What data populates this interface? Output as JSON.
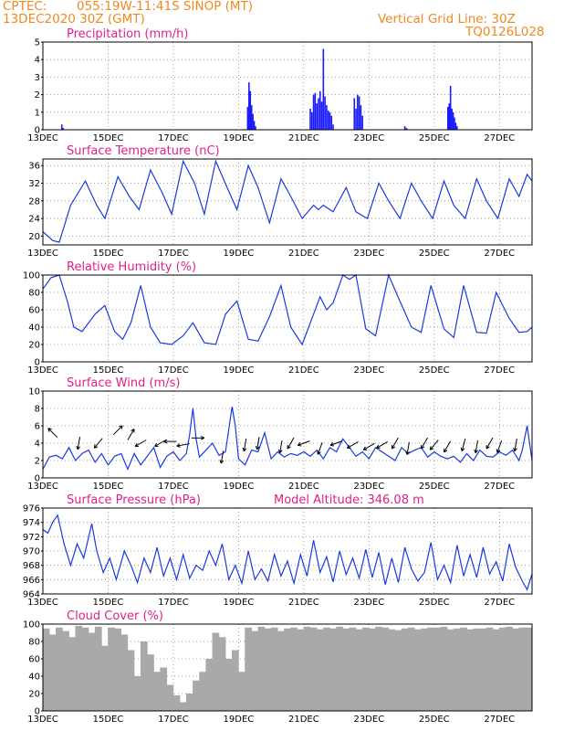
{
  "header": {
    "source": "CPTEC:",
    "location": "055:19W-11:41S  SINOP (MT)",
    "run": "13DEC2020 30Z (GMT)",
    "grid_note": "Vertical Grid Line: 30Z",
    "code": "TQ0126L028"
  },
  "colors": {
    "header_text": "#f08a20",
    "title_text": "#e0208c",
    "precip_bars": "#1a1aff",
    "line": "#1a3adf",
    "arrows": "#000000",
    "cloud": "#a9a9a9",
    "grid": "#888888"
  },
  "chart_data": [
    {
      "type": "bar",
      "title": "Precipitation (mm/h)",
      "x_range": [
        0,
        15
      ],
      "ylim": [
        0,
        5
      ],
      "yticks": [
        0,
        1,
        2,
        3,
        4,
        5
      ],
      "x_tick_labels": [
        "13DEC",
        "15DEC",
        "17DEC",
        "19DEC",
        "21DEC",
        "23DEC",
        "25DEC",
        "27DEC"
      ],
      "x_tick_days": [
        0,
        2,
        4,
        6,
        8,
        10,
        12,
        14
      ],
      "grid": "dotted",
      "x": [
        0.58,
        0.62,
        6.28,
        6.32,
        6.36,
        6.4,
        6.44,
        6.48,
        6.52,
        8.2,
        8.25,
        8.3,
        8.35,
        8.4,
        8.45,
        8.5,
        8.55,
        8.6,
        8.65,
        8.7,
        8.75,
        8.8,
        8.85,
        8.9,
        9.55,
        9.6,
        9.65,
        9.7,
        9.75,
        9.8,
        11.1,
        11.15,
        12.42,
        12.46,
        12.5,
        12.54,
        12.58,
        12.62,
        12.66,
        12.7
      ],
      "values": [
        0.3,
        0.1,
        1.3,
        2.7,
        2.2,
        1.4,
        0.9,
        0.5,
        0.2,
        1.2,
        1.0,
        2.0,
        2.1,
        1.5,
        1.8,
        2.2,
        1.6,
        4.6,
        1.9,
        1.4,
        1.1,
        1.0,
        0.8,
        0.3,
        1.8,
        1.2,
        2.0,
        1.9,
        1.4,
        0.8,
        0.2,
        0.1,
        1.3,
        1.5,
        2.5,
        1.2,
        1.0,
        0.7,
        0.4,
        0.2
      ]
    },
    {
      "type": "line",
      "title": "Surface Temperature (nC)",
      "x_range": [
        0,
        15
      ],
      "ylim": [
        18,
        37.5
      ],
      "yticks": [
        20,
        24,
        28,
        32,
        36
      ],
      "x_tick_labels": [
        "13DEC",
        "15DEC",
        "17DEC",
        "19DEC",
        "21DEC",
        "23DEC",
        "25DEC",
        "27DEC"
      ],
      "x_tick_days": [
        0,
        2,
        4,
        6,
        8,
        10,
        12,
        14
      ],
      "grid": "dotted",
      "x": [
        0,
        0.3,
        0.5,
        0.85,
        1.3,
        1.65,
        1.9,
        2.3,
        2.65,
        2.95,
        3.3,
        3.65,
        3.95,
        4.3,
        4.65,
        4.95,
        5.3,
        5.65,
        5.95,
        6.3,
        6.6,
        6.95,
        7.3,
        7.6,
        7.95,
        8.3,
        8.45,
        8.6,
        8.9,
        9.3,
        9.6,
        9.95,
        10.3,
        10.6,
        10.95,
        11.3,
        11.6,
        11.95,
        12.3,
        12.6,
        12.95,
        13.3,
        13.6,
        13.95,
        14.3,
        14.6,
        14.85,
        15
      ],
      "y": [
        21,
        19,
        18.6,
        27,
        32.5,
        27,
        24,
        33.5,
        29,
        26,
        35,
        30,
        25,
        37,
        32,
        25,
        37,
        31,
        26,
        36,
        31,
        23,
        33,
        29,
        24,
        27,
        26,
        27,
        25.5,
        31,
        25.5,
        24,
        32,
        28,
        24,
        32,
        28,
        24,
        32.5,
        27,
        24,
        33,
        28,
        24,
        33,
        29,
        34,
        32.5
      ]
    },
    {
      "type": "line",
      "title": "Relative Humidity (%)",
      "x_range": [
        0,
        15
      ],
      "ylim": [
        0,
        100
      ],
      "yticks": [
        0,
        20,
        40,
        60,
        80,
        100
      ],
      "x_tick_labels": [
        "13DEC",
        "15DEC",
        "17DEC",
        "19DEC",
        "21DEC",
        "23DEC",
        "25DEC",
        "27DEC"
      ],
      "x_tick_days": [
        0,
        2,
        4,
        6,
        8,
        10,
        12,
        14
      ],
      "grid": "dotted",
      "x": [
        0,
        0.25,
        0.5,
        0.75,
        0.95,
        1.2,
        1.6,
        1.9,
        2.2,
        2.45,
        2.7,
        3.0,
        3.3,
        3.6,
        3.95,
        4.3,
        4.6,
        4.95,
        5.3,
        5.6,
        5.95,
        6.3,
        6.6,
        6.95,
        7.3,
        7.6,
        7.95,
        8.3,
        8.5,
        8.7,
        8.9,
        9.2,
        9.4,
        9.6,
        9.9,
        10.2,
        10.6,
        10.9,
        11.3,
        11.6,
        11.9,
        12.3,
        12.6,
        12.9,
        13.3,
        13.6,
        13.9,
        14.3,
        14.6,
        14.85,
        15
      ],
      "y": [
        84,
        97,
        100,
        70,
        40,
        35,
        55,
        65,
        35,
        26,
        45,
        88,
        40,
        22,
        20,
        30,
        45,
        22,
        20,
        55,
        70,
        26,
        24,
        52,
        88,
        40,
        20,
        55,
        75,
        60,
        68,
        100,
        95,
        100,
        38,
        30,
        100,
        74,
        40,
        34,
        88,
        38,
        28,
        88,
        34,
        33,
        80,
        50,
        34,
        35,
        40
      ]
    },
    {
      "type": "line",
      "title": "Surface Wind (m/s)",
      "x_range": [
        0,
        15
      ],
      "ylim": [
        0,
        10
      ],
      "yticks": [
        0,
        2,
        4,
        6,
        8,
        10
      ],
      "x_tick_labels": [
        "13DEC",
        "15DEC",
        "17DEC",
        "19DEC",
        "21DEC",
        "23DEC",
        "25DEC",
        "27DEC"
      ],
      "x_tick_days": [
        0,
        2,
        4,
        6,
        8,
        10,
        12,
        14
      ],
      "grid": "dotted",
      "x": [
        0,
        0.2,
        0.4,
        0.6,
        0.8,
        1.0,
        1.2,
        1.4,
        1.6,
        1.8,
        2.0,
        2.2,
        2.4,
        2.6,
        2.8,
        3.0,
        3.2,
        3.4,
        3.6,
        3.8,
        4.0,
        4.2,
        4.4,
        4.5,
        4.6,
        4.7,
        4.8,
        5.0,
        5.2,
        5.4,
        5.6,
        5.8,
        5.9,
        6.0,
        6.2,
        6.4,
        6.6,
        6.8,
        7.0,
        7.2,
        7.4,
        7.6,
        7.8,
        8.0,
        8.2,
        8.4,
        8.6,
        8.8,
        9.0,
        9.2,
        9.4,
        9.6,
        9.8,
        10.0,
        10.2,
        10.4,
        10.6,
        10.8,
        11.0,
        11.2,
        11.4,
        11.6,
        11.8,
        12.0,
        12.2,
        12.4,
        12.6,
        12.8,
        13.0,
        13.2,
        13.4,
        13.6,
        13.8,
        14.0,
        14.2,
        14.4,
        14.6,
        14.7,
        14.85,
        15
      ],
      "y": [
        1.0,
        2.4,
        2.6,
        2.2,
        3.5,
        2.0,
        2.8,
        3.2,
        1.8,
        2.8,
        1.5,
        2.5,
        2.8,
        1.0,
        2.8,
        1.5,
        2.5,
        3.5,
        1.2,
        2.5,
        3.0,
        2.0,
        2.8,
        5.0,
        8.0,
        4.5,
        2.4,
        3.2,
        4.0,
        2.6,
        3.0,
        8.2,
        6.0,
        2.2,
        1.5,
        3.2,
        3.0,
        5.2,
        2.2,
        3.0,
        2.4,
        2.8,
        2.6,
        3.0,
        2.5,
        3.2,
        2.2,
        3.5,
        3.0,
        4.5,
        3.5,
        2.5,
        3.0,
        2.2,
        3.5,
        3.0,
        2.5,
        2.0,
        3.5,
        2.8,
        3.2,
        3.5,
        2.4,
        3.0,
        2.5,
        2.2,
        2.5,
        1.8,
        2.8,
        2.0,
        3.2,
        2.5,
        2.4,
        3.0,
        2.6,
        3.2,
        2.0,
        3.2,
        6.0,
        2.0
      ],
      "wind_arrows": [
        {
          "x": 0.3,
          "y": 5.2,
          "dir_deg": 135
        },
        {
          "x": 1.1,
          "y": 4.0,
          "dir_deg": 260
        },
        {
          "x": 1.7,
          "y": 4.0,
          "dir_deg": 230
        },
        {
          "x": 2.3,
          "y": 5.5,
          "dir_deg": 45
        },
        {
          "x": 2.7,
          "y": 5.0,
          "dir_deg": 60
        },
        {
          "x": 3.0,
          "y": 4.0,
          "dir_deg": 210
        },
        {
          "x": 3.6,
          "y": 4.0,
          "dir_deg": 210
        },
        {
          "x": 3.9,
          "y": 4.2,
          "dir_deg": 180
        },
        {
          "x": 4.3,
          "y": 3.8,
          "dir_deg": 190
        },
        {
          "x": 4.75,
          "y": 4.6,
          "dir_deg": 0
        },
        {
          "x": 5.5,
          "y": 2.4,
          "dir_deg": 260
        },
        {
          "x": 6.2,
          "y": 3.8,
          "dir_deg": 260
        },
        {
          "x": 6.6,
          "y": 4.0,
          "dir_deg": 260
        },
        {
          "x": 7.3,
          "y": 3.6,
          "dir_deg": 260
        },
        {
          "x": 7.6,
          "y": 4.0,
          "dir_deg": 240
        },
        {
          "x": 8.0,
          "y": 4.0,
          "dir_deg": 200
        },
        {
          "x": 8.5,
          "y": 3.4,
          "dir_deg": 250
        },
        {
          "x": 9.0,
          "y": 4.0,
          "dir_deg": 200
        },
        {
          "x": 9.5,
          "y": 3.8,
          "dir_deg": 210
        },
        {
          "x": 10.0,
          "y": 3.6,
          "dir_deg": 210
        },
        {
          "x": 10.4,
          "y": 3.8,
          "dir_deg": 210
        },
        {
          "x": 10.8,
          "y": 4.0,
          "dir_deg": 240
        },
        {
          "x": 11.2,
          "y": 3.4,
          "dir_deg": 260
        },
        {
          "x": 11.7,
          "y": 4.0,
          "dir_deg": 240
        },
        {
          "x": 12.0,
          "y": 3.8,
          "dir_deg": 230
        },
        {
          "x": 12.4,
          "y": 3.6,
          "dir_deg": 240
        },
        {
          "x": 12.9,
          "y": 3.8,
          "dir_deg": 255
        },
        {
          "x": 13.3,
          "y": 3.6,
          "dir_deg": 260
        },
        {
          "x": 13.7,
          "y": 4.0,
          "dir_deg": 240
        },
        {
          "x": 14.0,
          "y": 3.6,
          "dir_deg": 250
        },
        {
          "x": 14.5,
          "y": 3.8,
          "dir_deg": 260
        }
      ]
    },
    {
      "type": "line",
      "title": "Surface Pressure (hPa)",
      "annotation": "Model Altitude: 346.08 m",
      "x_range": [
        0,
        15
      ],
      "ylim": [
        964,
        976
      ],
      "yticks": [
        964,
        966,
        968,
        970,
        972,
        974,
        976
      ],
      "x_tick_labels": [
        "13DEC",
        "15DEC",
        "17DEC",
        "19DEC",
        "21DEC",
        "23DEC",
        "25DEC",
        "27DEC"
      ],
      "x_tick_days": [
        0,
        2,
        4,
        6,
        8,
        10,
        12,
        14
      ],
      "grid": "dotted",
      "x": [
        0,
        0.15,
        0.3,
        0.45,
        0.65,
        0.85,
        1.05,
        1.25,
        1.5,
        1.65,
        1.85,
        2.05,
        2.25,
        2.5,
        2.7,
        2.9,
        3.1,
        3.3,
        3.5,
        3.7,
        3.9,
        4.1,
        4.3,
        4.5,
        4.7,
        4.9,
        5.1,
        5.3,
        5.5,
        5.7,
        5.9,
        6.1,
        6.3,
        6.5,
        6.7,
        6.9,
        7.1,
        7.3,
        7.5,
        7.7,
        7.9,
        8.1,
        8.3,
        8.5,
        8.7,
        8.9,
        9.1,
        9.3,
        9.5,
        9.7,
        9.9,
        10.1,
        10.3,
        10.5,
        10.7,
        10.9,
        11.1,
        11.3,
        11.5,
        11.7,
        11.9,
        12.1,
        12.3,
        12.5,
        12.7,
        12.9,
        13.1,
        13.3,
        13.5,
        13.7,
        13.9,
        14.1,
        14.3,
        14.5,
        14.7,
        14.85,
        15
      ],
      "y": [
        973,
        972.5,
        974,
        975,
        971,
        968,
        971,
        969,
        973.8,
        970,
        967,
        969,
        966,
        970,
        968,
        965.6,
        969,
        967,
        970.5,
        966.5,
        969,
        966,
        969.5,
        966.2,
        968,
        967.3,
        970,
        968,
        971,
        966,
        968,
        965.5,
        970,
        966,
        967.5,
        965.8,
        969.5,
        966.5,
        968.6,
        965.5,
        969.5,
        966.5,
        971.5,
        967,
        969.2,
        965.7,
        970,
        966.7,
        969,
        966.2,
        970.2,
        966.3,
        969.8,
        965.3,
        969,
        965.6,
        970.5,
        967.5,
        965.8,
        967,
        971.2,
        966,
        968,
        965.6,
        970.8,
        966.5,
        969.5,
        966.3,
        970.5,
        966.8,
        968.5,
        965.8,
        971,
        967.7,
        965.8,
        964.6,
        966.8
      ]
    },
    {
      "type": "bar",
      "title": "Cloud Cover (%)",
      "x_range": [
        0,
        15
      ],
      "ylim": [
        0,
        100
      ],
      "yticks": [
        0,
        20,
        40,
        60,
        80,
        100
      ],
      "x_tick_labels": [
        "13DEC",
        "15DEC",
        "17DEC",
        "19DEC",
        "21DEC",
        "23DEC",
        "25DEC",
        "27DEC"
      ],
      "x_tick_days": [
        0,
        2,
        4,
        6,
        8,
        10,
        12,
        14
      ],
      "grid": "dotted",
      "x": [
        0.1,
        0.3,
        0.5,
        0.7,
        0.9,
        1.1,
        1.3,
        1.5,
        1.7,
        1.9,
        2.1,
        2.3,
        2.5,
        2.7,
        2.9,
        3.1,
        3.3,
        3.5,
        3.7,
        3.9,
        4.1,
        4.3,
        4.5,
        4.7,
        4.9,
        5.1,
        5.3,
        5.5,
        5.7,
        5.9,
        6.1,
        6.3,
        6.5,
        6.7,
        6.9,
        7.1,
        7.3,
        7.5,
        7.7,
        7.9,
        8.1,
        8.3,
        8.5,
        8.7,
        8.9,
        9.1,
        9.3,
        9.5,
        9.7,
        9.9,
        10.1,
        10.3,
        10.5,
        10.7,
        10.9,
        11.1,
        11.3,
        11.5,
        11.7,
        11.9,
        12.1,
        12.3,
        12.5,
        12.7,
        12.9,
        13.1,
        13.3,
        13.5,
        13.7,
        13.9,
        14.1,
        14.3,
        14.5,
        14.7,
        14.9
      ],
      "values": [
        95,
        88,
        96,
        92,
        85,
        98,
        96,
        90,
        97,
        75,
        96,
        95,
        88,
        70,
        40,
        80,
        65,
        45,
        50,
        30,
        18,
        10,
        20,
        35,
        45,
        60,
        90,
        85,
        60,
        70,
        45,
        96,
        92,
        97,
        95,
        96,
        92,
        95,
        96,
        94,
        97,
        96,
        94,
        96,
        95,
        97,
        95,
        96,
        94,
        96,
        95,
        97,
        96,
        94,
        93,
        95,
        96,
        94,
        95,
        96,
        96,
        97,
        94,
        95,
        96,
        94,
        95,
        95,
        96,
        94,
        96,
        97,
        95,
        96,
        96
      ]
    }
  ]
}
